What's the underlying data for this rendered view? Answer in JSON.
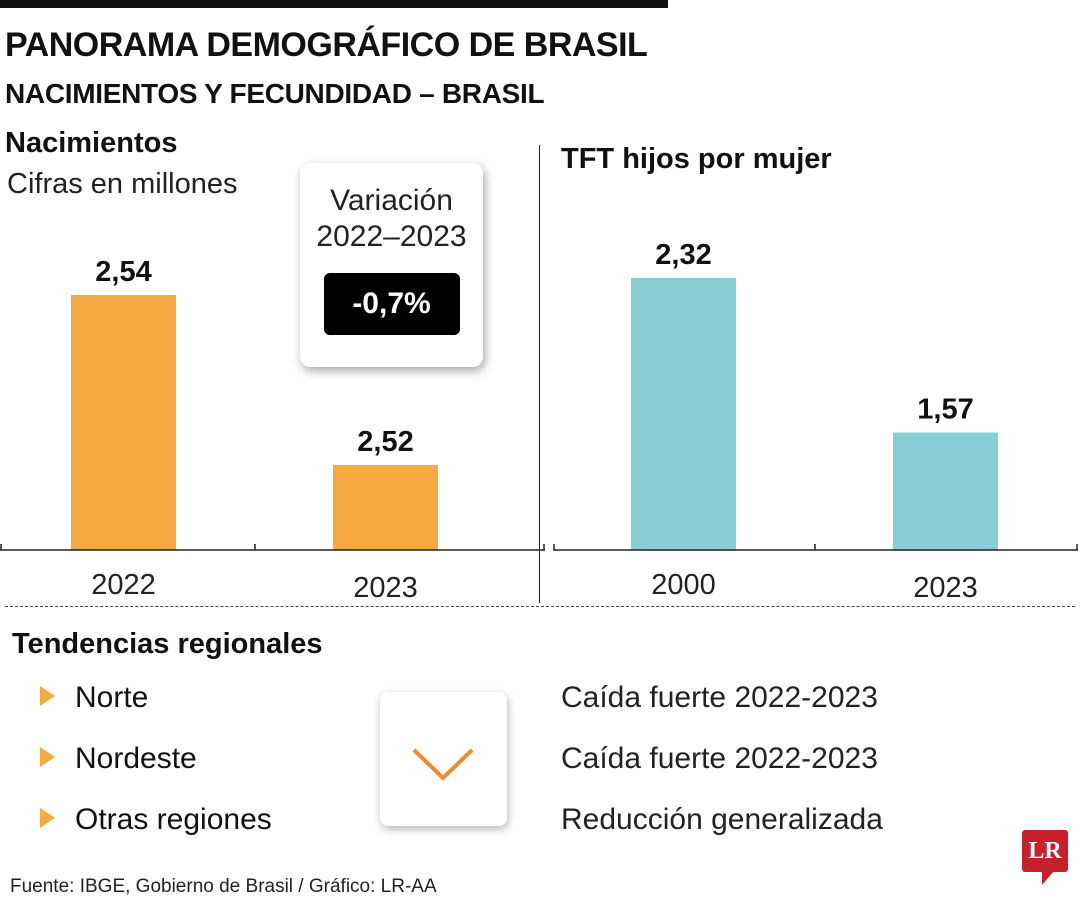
{
  "header": {
    "title": "PANORAMA DEMOGRÁFICO DE BRASIL",
    "subtitle": "NACIMIENTOS Y FECUNDIDAD – BRASIL"
  },
  "chart_data": [
    {
      "type": "bar",
      "title": "Nacimientos",
      "subtitle": "Cifras en millones",
      "categories": [
        "2022",
        "2023"
      ],
      "values": [
        2.54,
        2.52
      ],
      "data_labels": [
        "2,54",
        "2,52"
      ],
      "ylim": [
        2.51,
        2.55
      ],
      "color": "#f5a940",
      "grid": false
    },
    {
      "type": "bar",
      "title": "TFT hijos por mujer",
      "categories": [
        "2000",
        "2023"
      ],
      "values": [
        2.32,
        1.57
      ],
      "data_labels": [
        "2,32",
        "1,57"
      ],
      "ylim": [
        1.0,
        2.65
      ],
      "color": "#88cdd3",
      "grid": false
    }
  ],
  "variation": {
    "label_line1": "Variación",
    "label_line2": "2022–2023",
    "value": "-0,7%"
  },
  "regional": {
    "title": "Tendencias regionales",
    "icon": "chevron-down-icon",
    "icon_color": "#f08a30",
    "bullet_color": "#f5a940",
    "items": [
      {
        "region": "Norte",
        "trend": "Caída fuerte 2022-2023"
      },
      {
        "region": "Nordeste",
        "trend": "Caída fuerte 2022-2023"
      },
      {
        "region": "Otras regiones",
        "trend": "Reducción generalizada"
      }
    ]
  },
  "footer": {
    "source": "Fuente: IBGE, Gobierno de Brasil / Gráfico: LR-AA",
    "logo": "LR",
    "logo_color": "#c8202a"
  }
}
